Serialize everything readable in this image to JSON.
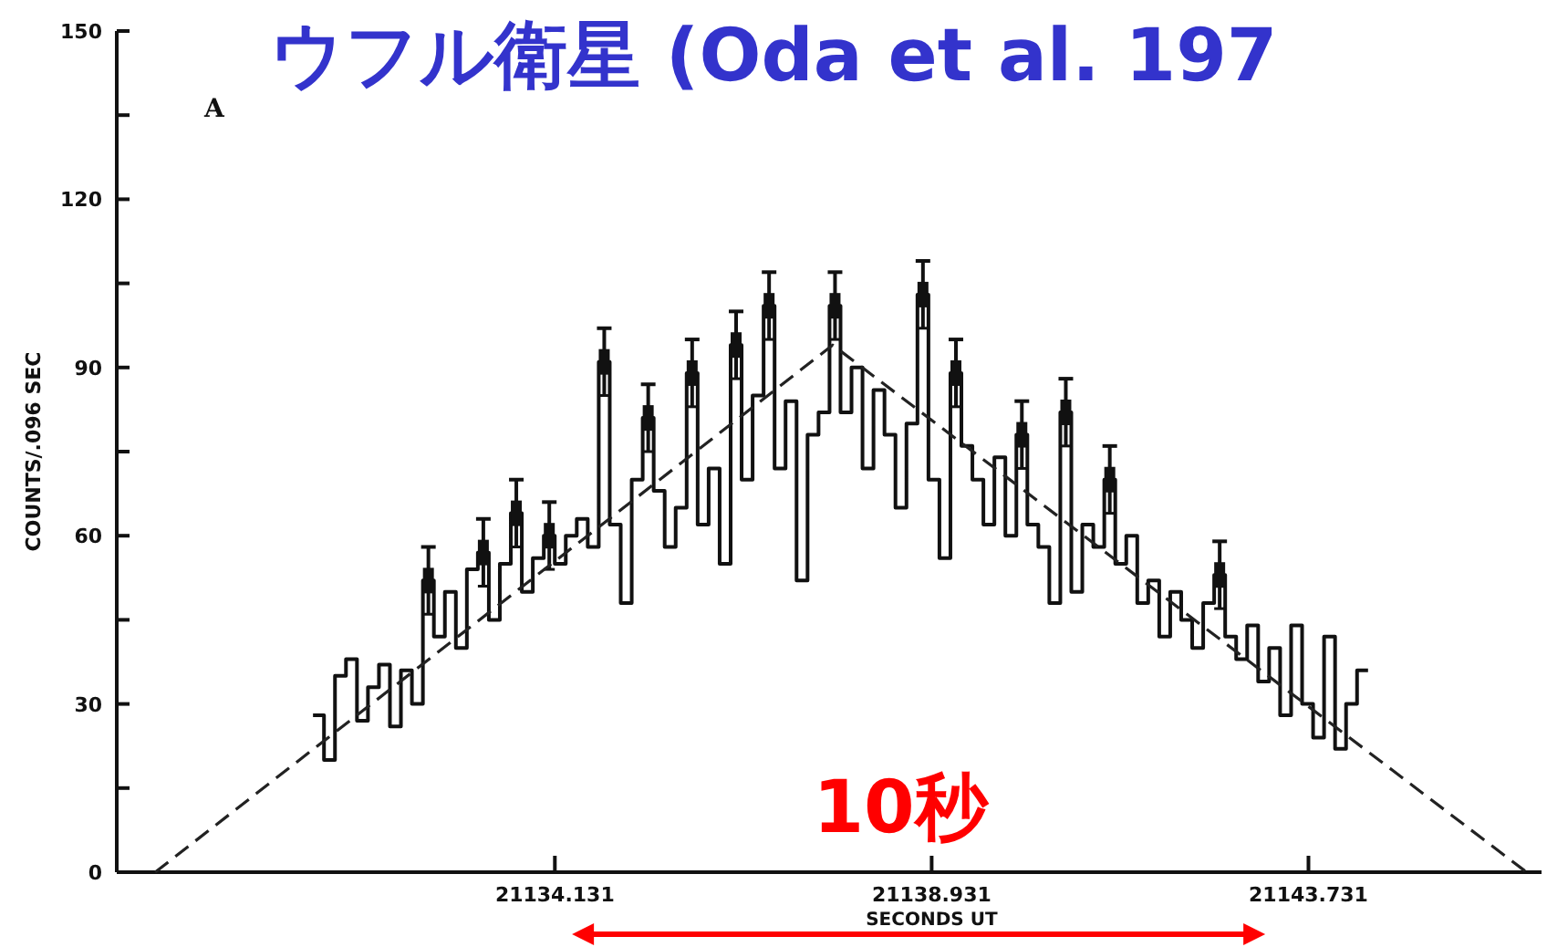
{
  "chart_data": {
    "type": "step",
    "title": "ウフル衛星 (Oda et al. 197",
    "xlabel": "SECONDS UT",
    "ylabel": "COUNTS/.096 SEC",
    "annotations": [
      "A",
      "10秒"
    ],
    "xlim": [
      21128.55,
      21146.7
    ],
    "ylim": [
      0,
      150
    ],
    "xticks": [
      21134.131,
      21138.931,
      21143.731
    ],
    "yticks": [
      0,
      {
        "value": 15,
        "label": null
      },
      30,
      {
        "value": 45,
        "label": null
      },
      60,
      {
        "value": 75,
        "label": null
      },
      90,
      {
        "value": 105,
        "label": null
      },
      120,
      {
        "value": 135,
        "label": null
      },
      150
    ],
    "series": [
      {
        "color": "#111111",
        "x": [
          21131.12,
          21131.26,
          21131.4,
          21131.54,
          21131.68,
          21131.82,
          21131.96,
          21132.1,
          21132.24,
          21132.38,
          21132.52,
          21132.66,
          21132.8,
          21132.94,
          21133.08,
          21133.22,
          21133.36,
          21133.5,
          21133.64,
          21133.78,
          21133.92,
          21134.06,
          21134.2,
          21134.34,
          21134.48,
          21134.62,
          21134.76,
          21134.9,
          21135.04,
          21135.18,
          21135.32,
          21135.46,
          21135.6,
          21135.74,
          21135.88,
          21136.02,
          21136.16,
          21136.3,
          21136.44,
          21136.58,
          21136.72,
          21136.86,
          21137.0,
          21137.14,
          21137.28,
          21137.42,
          21137.56,
          21137.7,
          21137.84,
          21137.98,
          21138.12,
          21138.26,
          21138.4,
          21138.54,
          21138.68,
          21138.82,
          21138.96,
          21139.1,
          21139.24,
          21139.38,
          21139.52,
          21139.66,
          21139.8,
          21139.94,
          21140.08,
          21140.22,
          21140.36,
          21140.5,
          21140.64,
          21140.78,
          21140.92,
          21141.06,
          21141.2,
          21141.34,
          21141.48,
          21141.62,
          21141.76,
          21141.9,
          21142.04,
          21142.18,
          21142.32,
          21142.46,
          21142.6,
          21142.74,
          21142.88,
          21143.02,
          21143.16,
          21143.3,
          21143.44,
          21143.58,
          21143.72,
          21143.86,
          21144.0,
          21144.14,
          21144.28,
          21144.42
        ],
        "values": [
          28,
          20,
          35,
          38,
          27,
          33,
          37,
          26,
          36,
          30,
          52,
          42,
          50,
          40,
          54,
          57,
          45,
          55,
          64,
          50,
          56,
          60,
          55,
          60,
          63,
          58,
          91,
          62,
          48,
          70,
          81,
          68,
          58,
          65,
          89,
          62,
          72,
          55,
          94,
          70,
          85,
          101,
          72,
          84,
          52,
          78,
          82,
          101,
          82,
          90,
          72,
          86,
          78,
          65,
          80,
          103,
          70,
          56,
          89,
          76,
          70,
          62,
          74,
          60,
          78,
          62,
          58,
          48,
          82,
          50,
          62,
          58,
          70,
          55,
          60,
          48,
          52,
          42,
          50,
          45,
          40,
          48,
          53,
          42,
          38,
          44,
          34,
          40,
          28,
          44,
          30,
          24,
          42,
          22,
          30,
          36
        ]
      },
      {
        "type": "scatter",
        "color": "#111111",
        "marker": "square",
        "x": [
          21132.52,
          21133.22,
          21133.64,
          21134.06,
          21134.76,
          21135.32,
          21135.88,
          21136.44,
          21136.86,
          21137.7,
          21138.82,
          21139.24,
          21140.08,
          21140.64,
          21141.2,
          21142.6
        ],
        "values": [
          52,
          57,
          64,
          60,
          91,
          81,
          89,
          94,
          101,
          101,
          103,
          89,
          78,
          82,
          70,
          53
        ],
        "errors": [
          6,
          6,
          6,
          6,
          6,
          6,
          6,
          6,
          6,
          6,
          6,
          6,
          6,
          6,
          6,
          6
        ]
      },
      {
        "type": "line",
        "color": "#222222",
        "line_style": "dashed",
        "x": [
          21129.04,
          21137.67,
          21146.51
        ],
        "values": [
          0,
          94,
          0
        ]
      }
    ]
  }
}
